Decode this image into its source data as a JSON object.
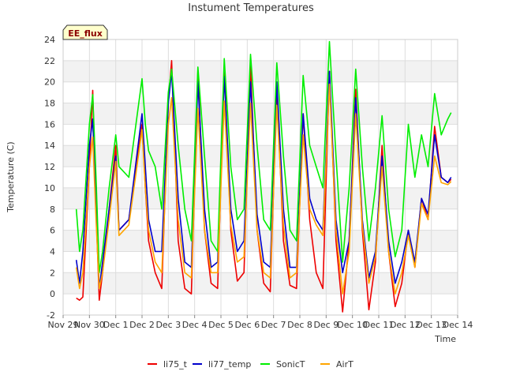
{
  "chart_data": {
    "type": "line",
    "title": "Instument Temperatures",
    "xlabel": "Time",
    "ylabel": "Temperature (C)",
    "badge": "EE_flux",
    "ylim": [
      -2,
      24
    ],
    "yticks": [
      -2,
      0,
      2,
      4,
      6,
      8,
      10,
      12,
      14,
      16,
      18,
      20,
      22,
      24
    ],
    "xlim": [
      "2023-11-29",
      "2023-12-14"
    ],
    "xticks": [
      "Nov 29",
      "Nov 30",
      "Dec 1",
      "Dec 2",
      "Dec 3",
      "Dec 4",
      "Dec 5",
      "Dec 6",
      "Dec 7",
      "Dec 8",
      "Dec 9",
      "Dec 10",
      "Dec 11",
      "Dec 12",
      "Dec 13",
      "Dec 14"
    ],
    "grid": true,
    "legend_position": "bottom",
    "series": [
      {
        "name": "li75_t",
        "color": "#ee0000",
        "points": [
          [
            "2023-11-29 12:00",
            -0.4
          ],
          [
            "2023-11-29 15:00",
            -0.6
          ],
          [
            "2023-11-29 18:00",
            -0.3
          ],
          [
            "2023-11-30 00:00",
            12.0
          ],
          [
            "2023-11-30 03:00",
            19.2
          ],
          [
            "2023-11-30 06:00",
            8.0
          ],
          [
            "2023-11-30 09:00",
            -0.6
          ],
          [
            "2023-11-30 12:00",
            2.0
          ],
          [
            "2023-11-30 18:00",
            8.0
          ],
          [
            "2023-12-01 00:00",
            14.0
          ],
          [
            "2023-12-01 03:00",
            6.0
          ],
          [
            "2023-12-01 12:00",
            7.0
          ],
          [
            "2023-12-02 00:00",
            16.0
          ],
          [
            "2023-12-02 03:00",
            10.0
          ],
          [
            "2023-12-02 06:00",
            5.0
          ],
          [
            "2023-12-02 12:00",
            2.0
          ],
          [
            "2023-12-02 18:00",
            0.5
          ],
          [
            "2023-12-03 00:00",
            18.0
          ],
          [
            "2023-12-03 03:00",
            22.0
          ],
          [
            "2023-12-03 09:00",
            5.0
          ],
          [
            "2023-12-03 15:00",
            0.5
          ],
          [
            "2023-12-03 21:00",
            0.0
          ],
          [
            "2023-12-04 03:00",
            21.0
          ],
          [
            "2023-12-04 09:00",
            6.0
          ],
          [
            "2023-12-04 15:00",
            1.0
          ],
          [
            "2023-12-04 21:00",
            0.5
          ],
          [
            "2023-12-05 03:00",
            21.2
          ],
          [
            "2023-12-05 09:00",
            6.0
          ],
          [
            "2023-12-05 15:00",
            1.2
          ],
          [
            "2023-12-05 21:00",
            2.0
          ],
          [
            "2023-12-06 03:00",
            21.5
          ],
          [
            "2023-12-06 09:00",
            6.0
          ],
          [
            "2023-12-06 15:00",
            1.0
          ],
          [
            "2023-12-06 21:00",
            0.2
          ],
          [
            "2023-12-07 03:00",
            19.5
          ],
          [
            "2023-12-07 09:00",
            5.0
          ],
          [
            "2023-12-07 15:00",
            0.8
          ],
          [
            "2023-12-07 21:00",
            0.5
          ],
          [
            "2023-12-08 03:00",
            17.0
          ],
          [
            "2023-12-08 09:00",
            7.0
          ],
          [
            "2023-12-08 15:00",
            2.0
          ],
          [
            "2023-12-08 21:00",
            0.5
          ],
          [
            "2023-12-09 03:00",
            21.0
          ],
          [
            "2023-12-09 09:00",
            5.0
          ],
          [
            "2023-12-09 15:00",
            -1.7
          ],
          [
            "2023-12-09 21:00",
            5.0
          ],
          [
            "2023-12-10 03:00",
            19.3
          ],
          [
            "2023-12-10 09:00",
            6.0
          ],
          [
            "2023-12-10 15:00",
            -1.5
          ],
          [
            "2023-12-10 21:00",
            3.0
          ],
          [
            "2023-12-11 03:00",
            14.0
          ],
          [
            "2023-12-11 09:00",
            4.0
          ],
          [
            "2023-12-11 15:00",
            -1.2
          ],
          [
            "2023-12-11 21:00",
            1.0
          ],
          [
            "2023-12-12 03:00",
            6.0
          ],
          [
            "2023-12-12 09:00",
            2.5
          ],
          [
            "2023-12-12 15:00",
            9.0
          ],
          [
            "2023-12-12 21:00",
            7.0
          ],
          [
            "2023-12-13 03:00",
            15.8
          ],
          [
            "2023-12-13 09:00",
            11.0
          ],
          [
            "2023-12-13 15:00",
            10.5
          ],
          [
            "2023-12-13 18:00",
            10.8
          ]
        ]
      },
      {
        "name": "li77_temp",
        "color": "#0000cc",
        "points": [
          [
            "2023-11-29 12:00",
            3.2
          ],
          [
            "2023-11-29 15:00",
            1.0
          ],
          [
            "2023-11-29 18:00",
            4.0
          ],
          [
            "2023-11-30 00:00",
            14.0
          ],
          [
            "2023-11-30 03:00",
            16.5
          ],
          [
            "2023-11-30 06:00",
            8.0
          ],
          [
            "2023-11-30 09:00",
            0.5
          ],
          [
            "2023-11-30 12:00",
            3.0
          ],
          [
            "2023-11-30 18:00",
            8.0
          ],
          [
            "2023-12-01 00:00",
            13.0
          ],
          [
            "2023-12-01 03:00",
            6.0
          ],
          [
            "2023-12-01 12:00",
            7.0
          ],
          [
            "2023-12-02 00:00",
            17.0
          ],
          [
            "2023-12-02 03:00",
            12.0
          ],
          [
            "2023-12-02 06:00",
            7.0
          ],
          [
            "2023-12-02 12:00",
            4.0
          ],
          [
            "2023-12-02 18:00",
            4.0
          ],
          [
            "2023-12-03 00:00",
            18.0
          ],
          [
            "2023-12-03 03:00",
            21.0
          ],
          [
            "2023-12-03 09:00",
            9.0
          ],
          [
            "2023-12-03 15:00",
            3.0
          ],
          [
            "2023-12-03 21:00",
            2.5
          ],
          [
            "2023-12-04 03:00",
            20.0
          ],
          [
            "2023-12-04 09:00",
            8.0
          ],
          [
            "2023-12-04 15:00",
            2.5
          ],
          [
            "2023-12-04 21:00",
            3.0
          ],
          [
            "2023-12-05 03:00",
            20.5
          ],
          [
            "2023-12-05 09:00",
            8.0
          ],
          [
            "2023-12-05 15:00",
            4.0
          ],
          [
            "2023-12-05 21:00",
            5.0
          ],
          [
            "2023-12-06 03:00",
            20.0
          ],
          [
            "2023-12-06 09:00",
            7.5
          ],
          [
            "2023-12-06 15:00",
            3.0
          ],
          [
            "2023-12-06 21:00",
            2.5
          ],
          [
            "2023-12-07 03:00",
            20.0
          ],
          [
            "2023-12-07 09:00",
            8.0
          ],
          [
            "2023-12-07 15:00",
            2.5
          ],
          [
            "2023-12-07 21:00",
            2.5
          ],
          [
            "2023-12-08 03:00",
            17.0
          ],
          [
            "2023-12-08 09:00",
            9.0
          ],
          [
            "2023-12-08 15:00",
            7.0
          ],
          [
            "2023-12-08 21:00",
            6.0
          ],
          [
            "2023-12-09 03:00",
            21.0
          ],
          [
            "2023-12-09 09:00",
            7.0
          ],
          [
            "2023-12-09 15:00",
            2.0
          ],
          [
            "2023-12-09 21:00",
            5.0
          ],
          [
            "2023-12-10 03:00",
            18.5
          ],
          [
            "2023-12-10 09:00",
            7.0
          ],
          [
            "2023-12-10 15:00",
            1.5
          ],
          [
            "2023-12-10 21:00",
            4.0
          ],
          [
            "2023-12-11 03:00",
            13.0
          ],
          [
            "2023-12-11 09:00",
            5.0
          ],
          [
            "2023-12-11 15:00",
            1.0
          ],
          [
            "2023-12-11 21:00",
            3.0
          ],
          [
            "2023-12-12 03:00",
            6.0
          ],
          [
            "2023-12-12 09:00",
            3.0
          ],
          [
            "2023-12-12 15:00",
            9.0
          ],
          [
            "2023-12-12 21:00",
            7.5
          ],
          [
            "2023-12-13 03:00",
            15.0
          ],
          [
            "2023-12-13 09:00",
            11.0
          ],
          [
            "2023-12-13 15:00",
            10.5
          ],
          [
            "2023-12-13 18:00",
            11.0
          ]
        ]
      },
      {
        "name": "SonicT",
        "color": "#00ee00",
        "points": [
          [
            "2023-11-29 12:00",
            8.0
          ],
          [
            "2023-11-29 15:00",
            4.0
          ],
          [
            "2023-11-29 18:00",
            6.0
          ],
          [
            "2023-11-30 00:00",
            16.0
          ],
          [
            "2023-11-30 03:00",
            18.8
          ],
          [
            "2023-11-30 06:00",
            11.0
          ],
          [
            "2023-11-30 09:00",
            2.0
          ],
          [
            "2023-11-30 12:00",
            4.0
          ],
          [
            "2023-11-30 18:00",
            10.0
          ],
          [
            "2023-12-01 00:00",
            15.0
          ],
          [
            "2023-12-01 03:00",
            12.0
          ],
          [
            "2023-12-01 12:00",
            11.0
          ],
          [
            "2023-12-02 00:00",
            20.3
          ],
          [
            "2023-12-02 03:00",
            16.0
          ],
          [
            "2023-12-02 06:00",
            13.5
          ],
          [
            "2023-12-02 12:00",
            12.0
          ],
          [
            "2023-12-02 18:00",
            8.0
          ],
          [
            "2023-12-03 00:00",
            19.0
          ],
          [
            "2023-12-03 03:00",
            21.2
          ],
          [
            "2023-12-03 09:00",
            14.0
          ],
          [
            "2023-12-03 15:00",
            8.0
          ],
          [
            "2023-12-03 21:00",
            5.0
          ],
          [
            "2023-12-04 03:00",
            21.4
          ],
          [
            "2023-12-04 09:00",
            13.0
          ],
          [
            "2023-12-04 15:00",
            5.0
          ],
          [
            "2023-12-04 21:00",
            4.0
          ],
          [
            "2023-12-05 03:00",
            22.2
          ],
          [
            "2023-12-05 09:00",
            12.0
          ],
          [
            "2023-12-05 15:00",
            7.0
          ],
          [
            "2023-12-05 21:00",
            8.0
          ],
          [
            "2023-12-06 03:00",
            22.6
          ],
          [
            "2023-12-06 09:00",
            14.0
          ],
          [
            "2023-12-06 15:00",
            7.0
          ],
          [
            "2023-12-06 21:00",
            6.0
          ],
          [
            "2023-12-07 03:00",
            21.8
          ],
          [
            "2023-12-07 09:00",
            13.0
          ],
          [
            "2023-12-07 15:00",
            6.0
          ],
          [
            "2023-12-07 21:00",
            5.0
          ],
          [
            "2023-12-08 03:00",
            20.6
          ],
          [
            "2023-12-08 09:00",
            14.0
          ],
          [
            "2023-12-08 15:00",
            12.0
          ],
          [
            "2023-12-08 21:00",
            10.0
          ],
          [
            "2023-12-09 03:00",
            23.8
          ],
          [
            "2023-12-09 09:00",
            13.0
          ],
          [
            "2023-12-09 15:00",
            3.0
          ],
          [
            "2023-12-09 21:00",
            10.0
          ],
          [
            "2023-12-10 03:00",
            21.2
          ],
          [
            "2023-12-10 09:00",
            12.0
          ],
          [
            "2023-12-10 15:00",
            5.0
          ],
          [
            "2023-12-10 21:00",
            10.0
          ],
          [
            "2023-12-11 03:00",
            16.8
          ],
          [
            "2023-12-11 09:00",
            8.0
          ],
          [
            "2023-12-11 15:00",
            3.5
          ],
          [
            "2023-12-11 21:00",
            6.0
          ],
          [
            "2023-12-12 03:00",
            16.0
          ],
          [
            "2023-12-12 09:00",
            11.0
          ],
          [
            "2023-12-12 15:00",
            15.0
          ],
          [
            "2023-12-12 21:00",
            12.0
          ],
          [
            "2023-12-13 03:00",
            18.9
          ],
          [
            "2023-12-13 09:00",
            15.0
          ],
          [
            "2023-12-13 15:00",
            16.5
          ],
          [
            "2023-12-13 18:00",
            17.1
          ]
        ]
      },
      {
        "name": "AirT",
        "color": "#ffa500",
        "points": [
          [
            "2023-11-29 12:00",
            2.5
          ],
          [
            "2023-11-29 15:00",
            0.5
          ],
          [
            "2023-11-29 18:00",
            2.0
          ],
          [
            "2023-11-30 00:00",
            12.0
          ],
          [
            "2023-11-30 03:00",
            14.8
          ],
          [
            "2023-11-30 06:00",
            7.0
          ],
          [
            "2023-11-30 09:00",
            0.5
          ],
          [
            "2023-11-30 12:00",
            2.0
          ],
          [
            "2023-11-30 18:00",
            7.0
          ],
          [
            "2023-12-01 00:00",
            12.5
          ],
          [
            "2023-12-01 03:00",
            5.5
          ],
          [
            "2023-12-01 12:00",
            6.5
          ],
          [
            "2023-12-02 00:00",
            15.5
          ],
          [
            "2023-12-02 03:00",
            10.0
          ],
          [
            "2023-12-02 06:00",
            6.0
          ],
          [
            "2023-12-02 12:00",
            3.0
          ],
          [
            "2023-12-02 18:00",
            2.0
          ],
          [
            "2023-12-03 00:00",
            16.0
          ],
          [
            "2023-12-03 03:00",
            18.5
          ],
          [
            "2023-12-03 09:00",
            7.0
          ],
          [
            "2023-12-03 15:00",
            2.0
          ],
          [
            "2023-12-03 21:00",
            1.5
          ],
          [
            "2023-12-04 03:00",
            17.5
          ],
          [
            "2023-12-04 09:00",
            6.0
          ],
          [
            "2023-12-04 15:00",
            2.0
          ],
          [
            "2023-12-04 21:00",
            2.0
          ],
          [
            "2023-12-05 03:00",
            18.2
          ],
          [
            "2023-12-05 09:00",
            6.5
          ],
          [
            "2023-12-05 15:00",
            3.0
          ],
          [
            "2023-12-05 21:00",
            3.5
          ],
          [
            "2023-12-06 03:00",
            18.0
          ],
          [
            "2023-12-06 09:00",
            6.0
          ],
          [
            "2023-12-06 15:00",
            2.0
          ],
          [
            "2023-12-06 21:00",
            1.5
          ],
          [
            "2023-12-07 03:00",
            17.8
          ],
          [
            "2023-12-07 09:00",
            6.5
          ],
          [
            "2023-12-07 15:00",
            1.5
          ],
          [
            "2023-12-07 21:00",
            2.0
          ],
          [
            "2023-12-08 03:00",
            15.0
          ],
          [
            "2023-12-08 09:00",
            8.0
          ],
          [
            "2023-12-08 15:00",
            6.5
          ],
          [
            "2023-12-08 21:00",
            5.5
          ],
          [
            "2023-12-09 03:00",
            19.8
          ],
          [
            "2023-12-09 09:00",
            6.0
          ],
          [
            "2023-12-09 15:00",
            0.0
          ],
          [
            "2023-12-09 21:00",
            4.0
          ],
          [
            "2023-12-10 03:00",
            17.0
          ],
          [
            "2023-12-10 09:00",
            6.5
          ],
          [
            "2023-12-10 15:00",
            1.0
          ],
          [
            "2023-12-10 21:00",
            3.5
          ],
          [
            "2023-12-11 03:00",
            12.0
          ],
          [
            "2023-12-11 09:00",
            4.0
          ],
          [
            "2023-12-11 15:00",
            0.0
          ],
          [
            "2023-12-11 21:00",
            2.0
          ],
          [
            "2023-12-12 03:00",
            5.5
          ],
          [
            "2023-12-12 09:00",
            2.5
          ],
          [
            "2023-12-12 15:00",
            8.5
          ],
          [
            "2023-12-12 21:00",
            7.0
          ],
          [
            "2023-12-13 03:00",
            13.0
          ],
          [
            "2023-12-13 09:00",
            10.5
          ],
          [
            "2023-12-13 15:00",
            10.3
          ],
          [
            "2023-12-13 18:00",
            10.6
          ]
        ]
      }
    ]
  }
}
